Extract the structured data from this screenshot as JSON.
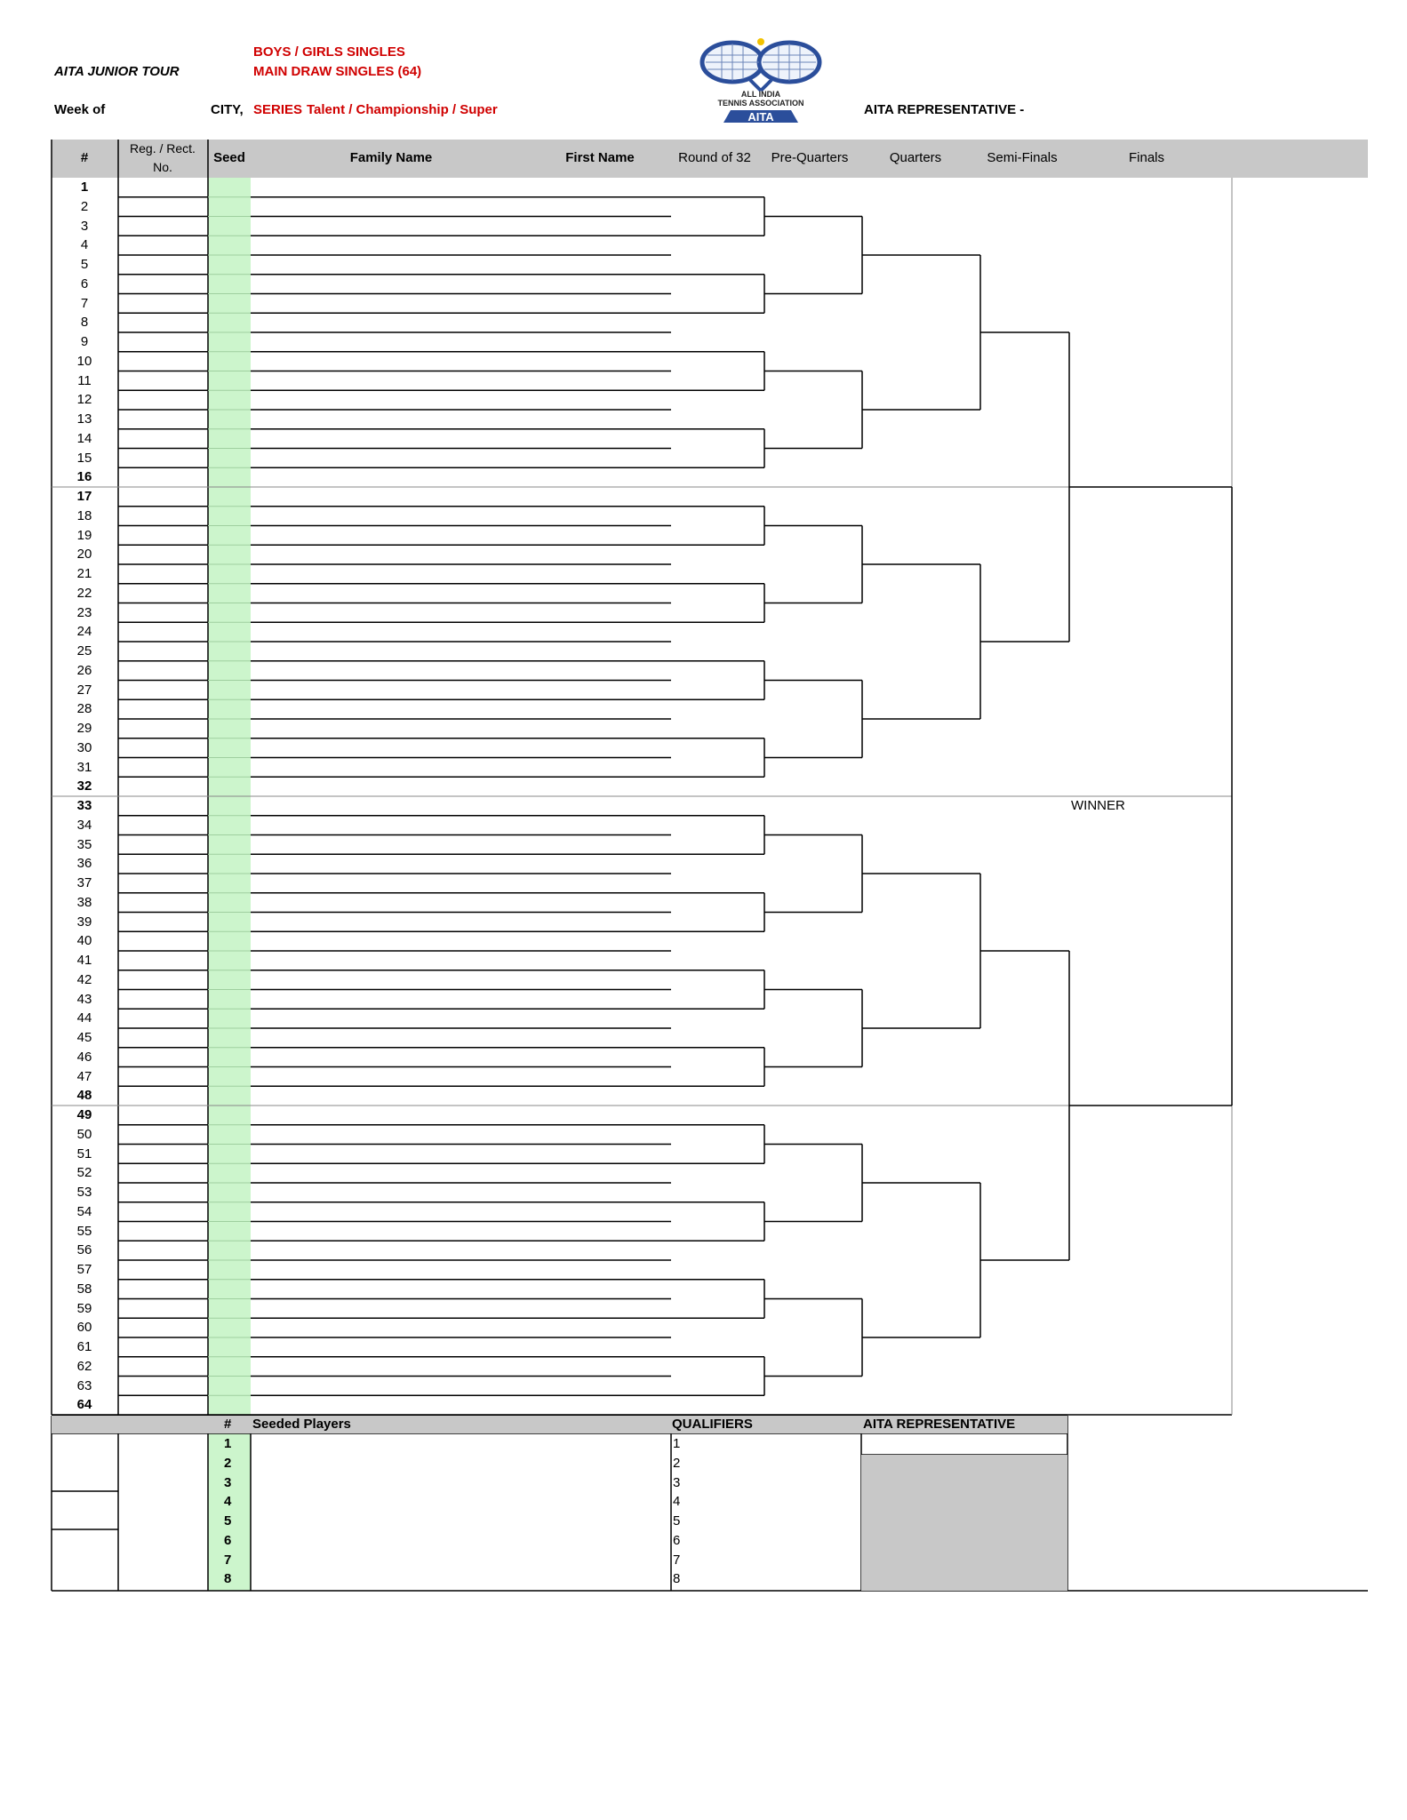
{
  "header": {
    "tour": "AITA JUNIOR TOUR",
    "event_line1": "BOYS / GIRLS SINGLES",
    "event_line2": "MAIN DRAW  SINGLES  (64)",
    "week_of": "Week of",
    "city": "CITY,",
    "series_label": "SERIES",
    "series_value": "Talent / Championship / Super",
    "representative": "AITA REPRESENTATIVE -"
  },
  "logo": {
    "icon": "tennis-rackets-icon",
    "line1": "ALL INDIA",
    "line2": "TENNIS ASSOCIATION",
    "line3": "AITA"
  },
  "columns": {
    "num": "#",
    "reg_line1": "Reg. / Rect.",
    "reg_line2": "No.",
    "seed": "Seed",
    "family_name": "Family Name",
    "first_name": "First Name",
    "round32": "Round of 32",
    "pre_quarters": "Pre-Quarters",
    "quarters": "Quarters",
    "semi_finals": "Semi-Finals",
    "finals": "Finals"
  },
  "draw_size": 64,
  "bold_positions": [
    1,
    16,
    17,
    32,
    33,
    48,
    49,
    64
  ],
  "winner_label": "WINNER",
  "footer": {
    "num_header": "#",
    "seeded_players": "Seeded Players",
    "seed_numbers": [
      "1",
      "2",
      "3",
      "4",
      "5",
      "6",
      "7",
      "8"
    ],
    "qualifiers": "QUALIFIERS",
    "qualifier_numbers": [
      "1",
      "2",
      "3",
      "4",
      "5",
      "6",
      "7",
      "8"
    ],
    "aita_representative": "AITA REPRESENTATIVE"
  },
  "colors": {
    "red": "#d00000",
    "header_grey": "#c8c8c8",
    "seed_green": "#ccf5cc"
  }
}
